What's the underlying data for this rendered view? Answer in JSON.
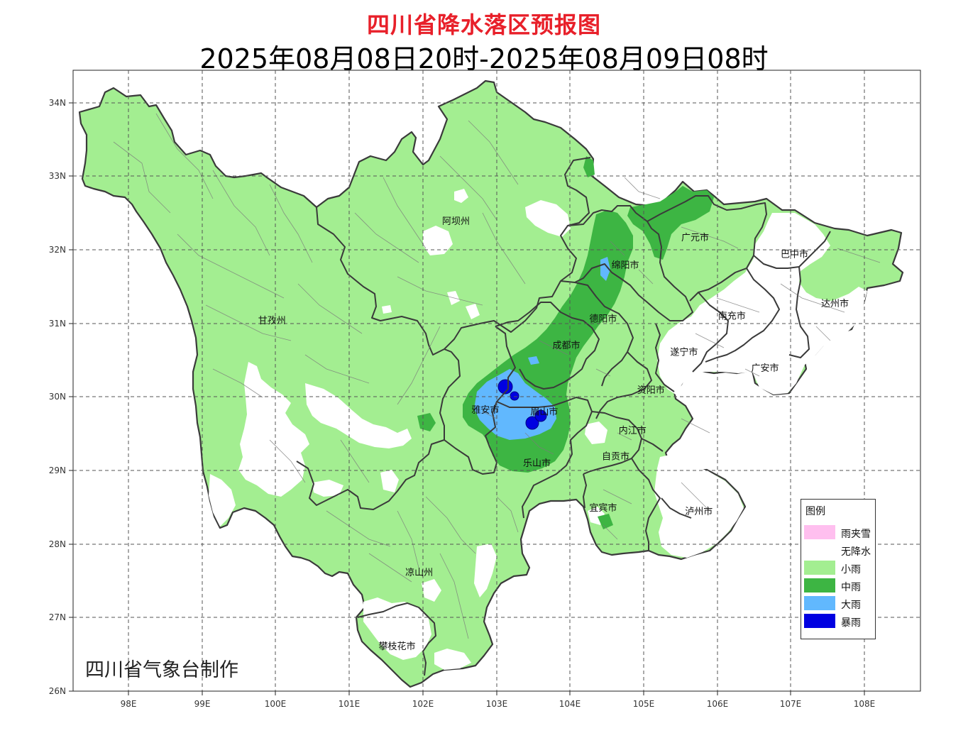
{
  "title": "四川省降水落区预报图",
  "subtitle": "2025年08月08日20时-2025年08月09日08时",
  "credit": "四川省气象台制作",
  "axes": {
    "x_ticks": [
      "98E",
      "99E",
      "100E",
      "101E",
      "102E",
      "103E",
      "104E",
      "105E",
      "106E",
      "107E",
      "108E"
    ],
    "y_ticks": [
      "34N",
      "33N",
      "32N",
      "31N",
      "30N",
      "29N",
      "28N",
      "27N",
      "26N"
    ]
  },
  "regions": [
    {
      "name": "阿坝州",
      "lon": 102.45,
      "lat": 32.4
    },
    {
      "name": "甘孜州",
      "lon": 99.95,
      "lat": 31.05
    },
    {
      "name": "广元市",
      "lon": 105.7,
      "lat": 32.18
    },
    {
      "name": "巴中市",
      "lon": 107.05,
      "lat": 31.95
    },
    {
      "name": "绵阳市",
      "lon": 104.75,
      "lat": 31.8
    },
    {
      "name": "达州市",
      "lon": 107.6,
      "lat": 31.28
    },
    {
      "name": "南充市",
      "lon": 106.2,
      "lat": 31.11
    },
    {
      "name": "德阳市",
      "lon": 104.45,
      "lat": 31.07
    },
    {
      "name": "成都市",
      "lon": 103.95,
      "lat": 30.71
    },
    {
      "name": "遂宁市",
      "lon": 105.55,
      "lat": 30.62
    },
    {
      "name": "广安市",
      "lon": 106.65,
      "lat": 30.4
    },
    {
      "name": "资阳市",
      "lon": 105.1,
      "lat": 30.1
    },
    {
      "name": "雅安市",
      "lon": 102.85,
      "lat": 29.83
    },
    {
      "name": "眉山市",
      "lon": 103.65,
      "lat": 29.81
    },
    {
      "name": "内江市",
      "lon": 104.85,
      "lat": 29.55
    },
    {
      "name": "自贡市",
      "lon": 104.62,
      "lat": 29.2
    },
    {
      "name": "乐山市",
      "lon": 103.55,
      "lat": 29.11
    },
    {
      "name": "宜宾市",
      "lon": 104.45,
      "lat": 28.5
    },
    {
      "name": "泸州市",
      "lon": 105.75,
      "lat": 28.45
    },
    {
      "name": "凉山州",
      "lon": 101.95,
      "lat": 27.62
    },
    {
      "name": "攀枝花市",
      "lon": 101.65,
      "lat": 26.62
    }
  ],
  "legend": {
    "title": "图例",
    "items": [
      {
        "label": "雨夹雪",
        "color": "#ffbfef"
      },
      {
        "label": "无降水",
        "color": "#ffffff"
      },
      {
        "label": "小雨",
        "color": "#a3ee91"
      },
      {
        "label": "中雨",
        "color": "#3db543"
      },
      {
        "label": "大雨",
        "color": "#61b8fe"
      },
      {
        "label": "暴雨",
        "color": "#0000e1"
      }
    ]
  },
  "colors": {
    "title": "#e8202a",
    "light_rain": "#a3ee91",
    "moderate_rain": "#3db543",
    "heavy_rain": "#61b8fe",
    "rainstorm": "#0000e1",
    "no_rain": "#ffffff",
    "boundary": "#404040"
  }
}
